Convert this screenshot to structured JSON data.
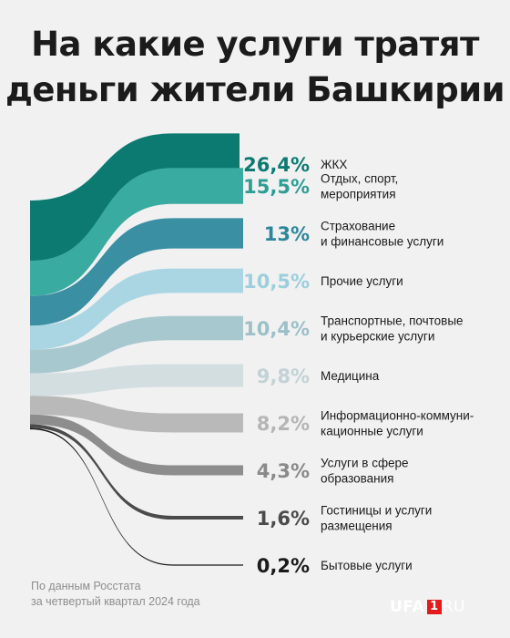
{
  "chart_data": {
    "type": "bar",
    "title": "На какие услуги тратят деньги жители Башкирии",
    "title_lines": [
      "На какие услуги тратят",
      "деньги жители Башкирии"
    ],
    "unit": "%",
    "items": [
      {
        "value": 26.4,
        "value_label": "26,4%",
        "label_lines": [
          "ЖКХ"
        ],
        "color": "#0d7a72",
        "text_color": "#0d7a72"
      },
      {
        "value": 15.5,
        "value_label": "15,5%",
        "label_lines": [
          "Отдых, спорт,",
          "мероприятия"
        ],
        "color": "#39aba0",
        "text_color": "#2e9e94"
      },
      {
        "value": 13,
        "value_label": "13%",
        "label_lines": [
          "Страхование",
          "и финансовые услуги"
        ],
        "color": "#3a8fa3",
        "text_color": "#2d879b"
      },
      {
        "value": 10.5,
        "value_label": "10,5%",
        "label_lines": [
          "Прочие услуги"
        ],
        "color": "#a9d6e2",
        "text_color": "#9ccfdc"
      },
      {
        "value": 10.4,
        "value_label": "10,4%",
        "label_lines": [
          "Транспортные, почтовые",
          "и курьерские услуги"
        ],
        "color": "#a8c8cf",
        "text_color": "#9bc0c8"
      },
      {
        "value": 9.8,
        "value_label": "9,8%",
        "label_lines": [
          "Медицина"
        ],
        "color": "#d3dee1",
        "text_color": "#c2d2d6"
      },
      {
        "value": 8.2,
        "value_label": "8,2%",
        "label_lines": [
          "Информационно-коммуни-",
          "кационные услуги"
        ],
        "color": "#b9b9b9",
        "text_color": "#b5b5b5"
      },
      {
        "value": 4.3,
        "value_label": "4,3%",
        "label_lines": [
          "Услуги в сфере",
          "образования"
        ],
        "color": "#8d8d8d",
        "text_color": "#8a8a8a"
      },
      {
        "value": 1.6,
        "value_label": "1,6%",
        "label_lines": [
          "Гостиницы и услуги",
          "размещения"
        ],
        "color": "#4b4b4b",
        "text_color": "#4b4b4b"
      },
      {
        "value": 0.2,
        "value_label": "0,2%",
        "label_lines": [
          "Бытовые услуги"
        ],
        "color": "#1b1b1b",
        "text_color": "#1b1b1b"
      }
    ]
  },
  "source_lines": [
    "По данным Росстата",
    "за четвертый квартал 2024 года"
  ],
  "logo": {
    "main": "UFA",
    "box": "1",
    "suffix": "RU"
  }
}
